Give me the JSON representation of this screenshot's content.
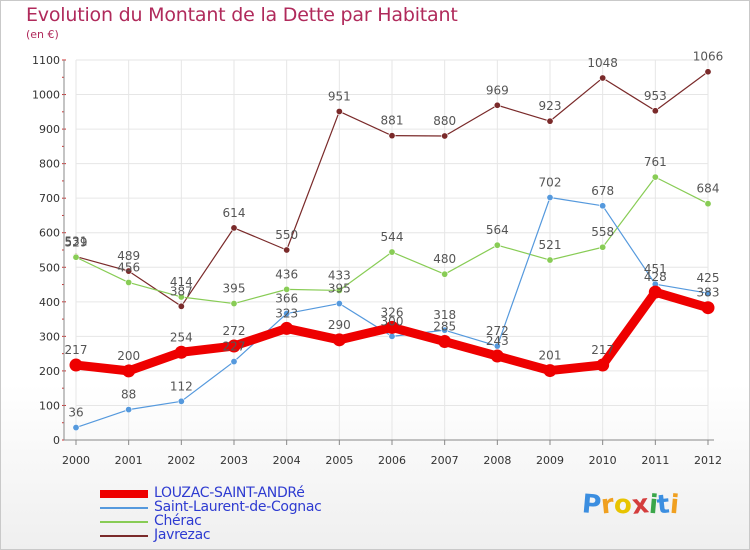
{
  "title": "Evolution du Montant de la Dette par Habitant",
  "subtitle": "(en €)",
  "logo_text": "Proxiti",
  "colors": {
    "title": "#b02a5b",
    "legend_text": "#2e3bd1",
    "axis": "#888888",
    "grid": "#e6e6e6",
    "tick_mark": "#cc3333"
  },
  "chart_data": {
    "type": "line",
    "title": "Evolution du Montant de la Dette par Habitant",
    "subtitle": "(en €)",
    "xlabel": "",
    "ylabel": "",
    "x": [
      2000,
      2001,
      2002,
      2003,
      2004,
      2005,
      2006,
      2007,
      2008,
      2009,
      2010,
      2011,
      2012
    ],
    "ylim": [
      0,
      1100
    ],
    "yticks": [
      0,
      100,
      200,
      300,
      400,
      500,
      600,
      700,
      800,
      900,
      1000,
      1100
    ],
    "grid": true,
    "legend_position": "bottom-left",
    "series": [
      {
        "name": "LOUZAC-SAINT-ANDRé",
        "color": "#ee0000",
        "values": [
          217,
          200,
          254,
          272,
          323,
          290,
          326,
          285,
          243,
          201,
          217,
          428,
          383
        ],
        "labels": [
          "217",
          "200",
          "254",
          "272",
          "323",
          "290",
          "326",
          "285",
          "243",
          "201",
          "217",
          "428",
          "383"
        ]
      },
      {
        "name": "Saint-Laurent-de-Cognac",
        "color": "#5599dd",
        "values": [
          36,
          88,
          112,
          227,
          366,
          395,
          300,
          318,
          272,
          702,
          678,
          451,
          425
        ],
        "labels": [
          "36",
          "88",
          "112",
          "227",
          "366",
          "395",
          "300",
          "318",
          "272",
          "702",
          "678",
          "451",
          "425"
        ]
      },
      {
        "name": "Chérac",
        "color": "#88cc55",
        "values": [
          529,
          456,
          414,
          395,
          436,
          433,
          544,
          480,
          564,
          521,
          558,
          761,
          684
        ],
        "labels": [
          "529",
          "456",
          "414",
          "395",
          "436",
          "433",
          "544",
          "480",
          "564",
          "521",
          "558",
          "761",
          "684"
        ]
      },
      {
        "name": "Javrezac",
        "color": "#7a2a2a",
        "values": [
          531,
          489,
          387,
          614,
          550,
          951,
          881,
          880,
          969,
          923,
          1048,
          953,
          1066
        ],
        "labels": [
          "531",
          "489",
          "387",
          "614",
          "550",
          "951",
          "881",
          "880",
          "969",
          "923",
          "1048",
          "953",
          "1066"
        ]
      }
    ]
  }
}
